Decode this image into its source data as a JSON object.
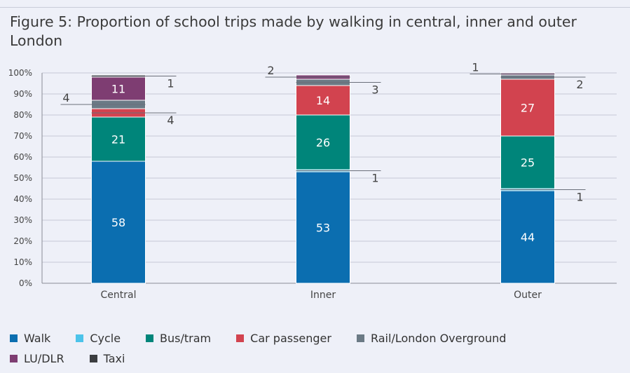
{
  "title": "Figure 5: Proportion of school trips made by walking in central, inner and outer London",
  "chart_data": {
    "type": "bar",
    "stacked": true,
    "categories": [
      "Central",
      "Inner",
      "Outer"
    ],
    "ylim": [
      0,
      100
    ],
    "yticks": [
      "0%",
      "10%",
      "20%",
      "30%",
      "40%",
      "50%",
      "60%",
      "70%",
      "80%",
      "90%",
      "100%"
    ],
    "grid": true,
    "legend_position": "bottom",
    "series": [
      {
        "name": "Walk",
        "color": "#0b6eb0",
        "values": [
          58,
          53,
          44
        ]
      },
      {
        "name": "Cycle",
        "color": "#4cc3ea",
        "values": [
          0,
          1,
          1
        ]
      },
      {
        "name": "Bus/tram",
        "color": "#00857a",
        "values": [
          21,
          26,
          25
        ]
      },
      {
        "name": "Car passenger",
        "color": "#d2434f",
        "values": [
          4,
          14,
          27
        ]
      },
      {
        "name": "Rail/London Overground",
        "color": "#6b7a85",
        "values": [
          4,
          3,
          2
        ]
      },
      {
        "name": "LU/DLR",
        "color": "#7e3d72",
        "values": [
          11,
          2,
          1
        ]
      },
      {
        "name": "Taxi",
        "color": "#3b3d40",
        "values": [
          1,
          0,
          0
        ]
      }
    ],
    "data_labels": {
      "inside": [
        {
          "category": "Central",
          "series": "Walk",
          "text": "58"
        },
        {
          "category": "Central",
          "series": "Bus/tram",
          "text": "21"
        },
        {
          "category": "Central",
          "series": "LU/DLR",
          "text": "11"
        },
        {
          "category": "Inner",
          "series": "Walk",
          "text": "53"
        },
        {
          "category": "Inner",
          "series": "Bus/tram",
          "text": "26"
        },
        {
          "category": "Inner",
          "series": "Car passenger",
          "text": "14"
        },
        {
          "category": "Outer",
          "series": "Walk",
          "text": "44"
        },
        {
          "category": "Outer",
          "series": "Bus/tram",
          "text": "25"
        },
        {
          "category": "Outer",
          "series": "Car passenger",
          "text": "27"
        }
      ],
      "callouts": [
        {
          "category": "Central",
          "series": "Car passenger",
          "text": "4",
          "side": "right"
        },
        {
          "category": "Central",
          "series": "Rail/London Overground",
          "text": "4",
          "side": "left"
        },
        {
          "category": "Central",
          "series": "Taxi",
          "text": "1",
          "side": "right"
        },
        {
          "category": "Inner",
          "series": "Cycle",
          "text": "1",
          "side": "right"
        },
        {
          "category": "Inner",
          "series": "Rail/London Overground",
          "text": "3",
          "side": "right"
        },
        {
          "category": "Inner",
          "series": "LU/DLR",
          "text": "2",
          "side": "left"
        },
        {
          "category": "Outer",
          "series": "Cycle",
          "text": "1",
          "side": "right"
        },
        {
          "category": "Outer",
          "series": "Rail/London Overground",
          "text": "2",
          "side": "right"
        },
        {
          "category": "Outer",
          "series": "LU/DLR",
          "text": "1",
          "side": "left"
        }
      ]
    }
  }
}
